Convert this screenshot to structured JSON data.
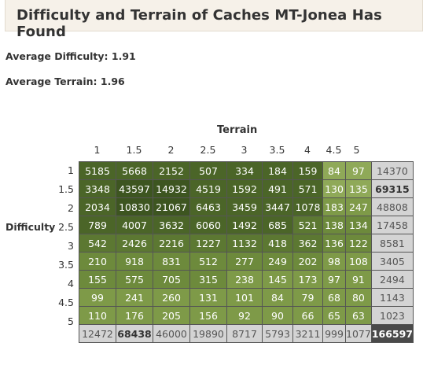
{
  "title": "Difficulty and Terrain of Caches MT-Jonea Has Found",
  "average_difficulty": "Average Difficulty: 1.91",
  "average_terrain": "Average Terrain: 1.96",
  "terrain_label": "Terrain",
  "difficulty_label": "Difficulty",
  "terrain_headers": [
    "1",
    "1.5",
    "2",
    "2.5",
    "3",
    "3.5",
    "4",
    "4.5",
    "5"
  ],
  "rows": [
    {
      "d": "1",
      "cells": [
        "5185",
        "5668",
        "2152",
        "507",
        "334",
        "184",
        "159",
        "84",
        "97"
      ],
      "total": "14370",
      "bold": false
    },
    {
      "d": "1.5",
      "cells": [
        "3348",
        "43597",
        "14932",
        "4519",
        "1592",
        "491",
        "571",
        "130",
        "135"
      ],
      "total": "69315",
      "bold": true
    },
    {
      "d": "2",
      "cells": [
        "2034",
        "10830",
        "21067",
        "6463",
        "3459",
        "3447",
        "1078",
        "183",
        "247"
      ],
      "total": "48808",
      "bold": false
    },
    {
      "d": "2.5",
      "cells": [
        "789",
        "4007",
        "3632",
        "6060",
        "1492",
        "685",
        "521",
        "138",
        "134"
      ],
      "total": "17458",
      "bold": false
    },
    {
      "d": "3",
      "cells": [
        "542",
        "2426",
        "2216",
        "1227",
        "1132",
        "418",
        "362",
        "136",
        "122"
      ],
      "total": "8581",
      "bold": false
    },
    {
      "d": "3.5",
      "cells": [
        "210",
        "918",
        "831",
        "512",
        "277",
        "249",
        "202",
        "98",
        "108"
      ],
      "total": "3405",
      "bold": false
    },
    {
      "d": "4",
      "cells": [
        "155",
        "575",
        "705",
        "315",
        "238",
        "145",
        "173",
        "97",
        "91"
      ],
      "total": "2494",
      "bold": false
    },
    {
      "d": "4.5",
      "cells": [
        "99",
        "241",
        "260",
        "131",
        "101",
        "84",
        "79",
        "68",
        "80"
      ],
      "total": "1143",
      "bold": false
    },
    {
      "d": "5",
      "cells": [
        "110",
        "176",
        "205",
        "156",
        "92",
        "90",
        "66",
        "65",
        "63"
      ],
      "total": "1023",
      "bold": false
    }
  ],
  "column_totals": [
    "12472",
    "68438",
    "46000",
    "19890",
    "8717",
    "5793",
    "3211",
    "999",
    "1077"
  ],
  "column_total_bold": [
    false,
    true,
    false,
    false,
    false,
    false,
    false,
    false,
    false
  ],
  "grand_total": "166597",
  "colors": {
    "darkest": "#3d5520",
    "dark": "#4b6528",
    "mid_dark": "#5c7832",
    "mid": "#6d8a3c",
    "light": "#7e9a48",
    "lightest": "#8fa958",
    "total_cell": "#d4d4d4",
    "grand_total": "#4a4a4a",
    "title_bg": "#f6f1e9"
  }
}
